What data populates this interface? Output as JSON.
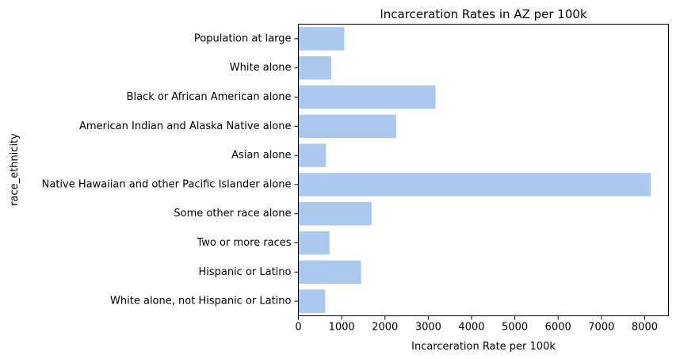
{
  "chart_data": {
    "type": "bar",
    "orientation": "horizontal",
    "title": "Incarceration Rates in AZ per 100k",
    "xlabel": "Incarceration Rate per 100k",
    "ylabel": "race_ethnicity",
    "categories": [
      "Population at large",
      "White alone",
      "Black or African American alone",
      "American Indian and Alaska Native alone",
      "Asian alone",
      "Native Hawaiian and other Pacific Islander alone",
      "Some other race alone",
      "Two or more races",
      "Hispanic or Latino",
      "White alone, not Hispanic or Latino"
    ],
    "values": [
      1060,
      760,
      3170,
      2260,
      640,
      8140,
      1690,
      720,
      1450,
      620
    ],
    "xlim": [
      0,
      8550
    ],
    "xticks": [
      0,
      1000,
      2000,
      3000,
      4000,
      5000,
      6000,
      7000,
      8000
    ],
    "grid": false,
    "legend": "none",
    "bar_color": "#abc9ef"
  }
}
